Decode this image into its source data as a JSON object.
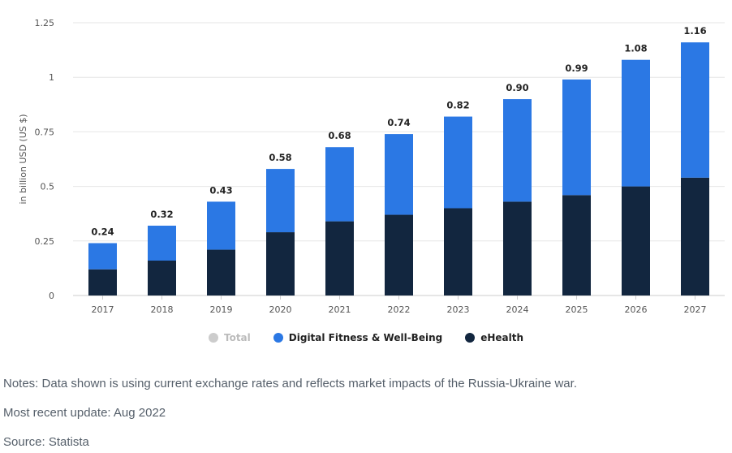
{
  "chart_data": {
    "type": "bar",
    "stacked": true,
    "categories": [
      "2017",
      "2018",
      "2019",
      "2020",
      "2021",
      "2022",
      "2023",
      "2024",
      "2025",
      "2026",
      "2027"
    ],
    "series": [
      {
        "name": "eHealth",
        "color": "#12263f",
        "values": [
          0.12,
          0.16,
          0.21,
          0.29,
          0.34,
          0.37,
          0.4,
          0.43,
          0.46,
          0.5,
          0.54
        ]
      },
      {
        "name": "Digital Fitness & Well-Being",
        "color": "#2b78e4",
        "values": [
          0.12,
          0.16,
          0.22,
          0.29,
          0.34,
          0.37,
          0.42,
          0.47,
          0.53,
          0.58,
          0.62
        ]
      }
    ],
    "totals": [
      "0.24",
      "0.32",
      "0.43",
      "0.58",
      "0.68",
      "0.74",
      "0.82",
      "0.90",
      "0.99",
      "1.08",
      "1.16"
    ],
    "ylabel": "in billion USD (US $)",
    "ylim": [
      0,
      1.25
    ],
    "yticks": [
      "0",
      "0.25",
      "0.5",
      "0.75",
      "1",
      "1.25"
    ],
    "grid": true
  },
  "legend": {
    "items": [
      {
        "label": "Total",
        "color": "#cccccc",
        "active": false
      },
      {
        "label": "Digital Fitness & Well-Being",
        "color": "#2b78e4",
        "active": true
      },
      {
        "label": "eHealth",
        "color": "#12263f",
        "active": true
      }
    ]
  },
  "footer": {
    "notes": "Notes: Data shown is using current exchange rates and reflects market impacts of the Russia-Ukraine war.",
    "update": "Most recent update: Aug 2022",
    "source": "Source: Statista"
  }
}
